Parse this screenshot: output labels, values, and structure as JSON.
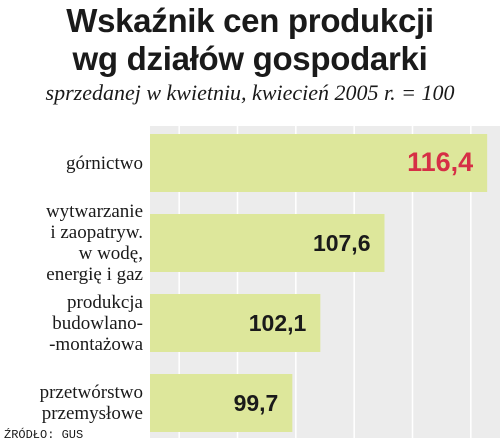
{
  "title": [
    "Wskaźnik cen produkcji",
    "wg działów gospodarki"
  ],
  "subtitle": "sprzedanej w kwietniu, kwiecień 2005 r. = 100",
  "source": "ŹRÓDŁO: GUS",
  "colors": {
    "bar": "#dde79b",
    "panel": "#ececec",
    "gridline": "#ffffff",
    "highlight_label": "#d62f46",
    "label": "#1a1a1a"
  },
  "chart_data": {
    "type": "bar",
    "orientation": "horizontal",
    "categories": [
      [
        "górnictwo"
      ],
      [
        "wytwarzanie",
        "i zaopatryw.",
        "w wodę,",
        "energię i gaz"
      ],
      [
        "produkcja",
        "budowlano-",
        "-montażowa"
      ],
      [
        "przetwórstwo",
        "przemysłowe"
      ]
    ],
    "values": [
      116.4,
      107.6,
      102.1,
      99.7
    ],
    "value_labels": [
      "116,4",
      "107,6",
      "102,1",
      "99,7"
    ],
    "highlight_index": 0,
    "xlim": [
      87.5,
      117.5
    ],
    "grid": true,
    "legend": "none"
  }
}
